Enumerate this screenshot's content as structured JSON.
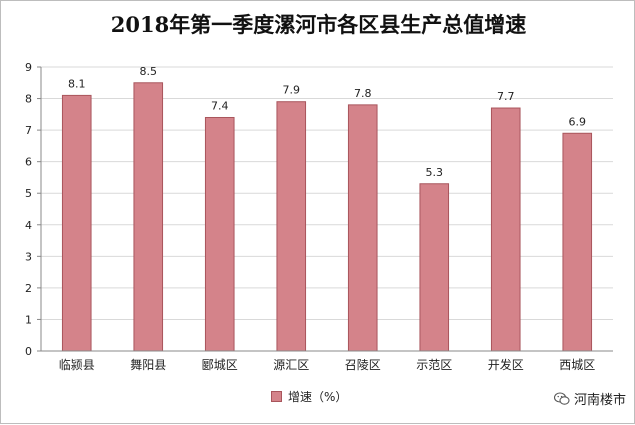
{
  "chart_data": {
    "type": "bar",
    "title": "2018年第一季度漯河市各区县生产总值增速",
    "categories": [
      "临颍县",
      "舞阳县",
      "郾城区",
      "源汇区",
      "召陵区",
      "示范区",
      "开发区",
      "西城区"
    ],
    "series": [
      {
        "name": "增速（%）",
        "values": [
          8.1,
          8.5,
          7.4,
          7.9,
          7.8,
          5.3,
          7.7,
          6.9
        ]
      }
    ],
    "data_labels": [
      "8.1",
      "8.5",
      "7.4",
      "7.9",
      "7.8",
      "5.3",
      "7.7",
      "6.9"
    ],
    "ylim": [
      0,
      9
    ],
    "yticks": [
      "0",
      "1",
      "2",
      "3",
      "4",
      "5",
      "6",
      "7",
      "8",
      "9"
    ],
    "grid": true,
    "legend_position": "bottom",
    "bar_color": "#d4838a",
    "bar_border_color": "#a9555c"
  },
  "watermark": {
    "text": "河南楼市",
    "icon": "wechat-icon"
  }
}
